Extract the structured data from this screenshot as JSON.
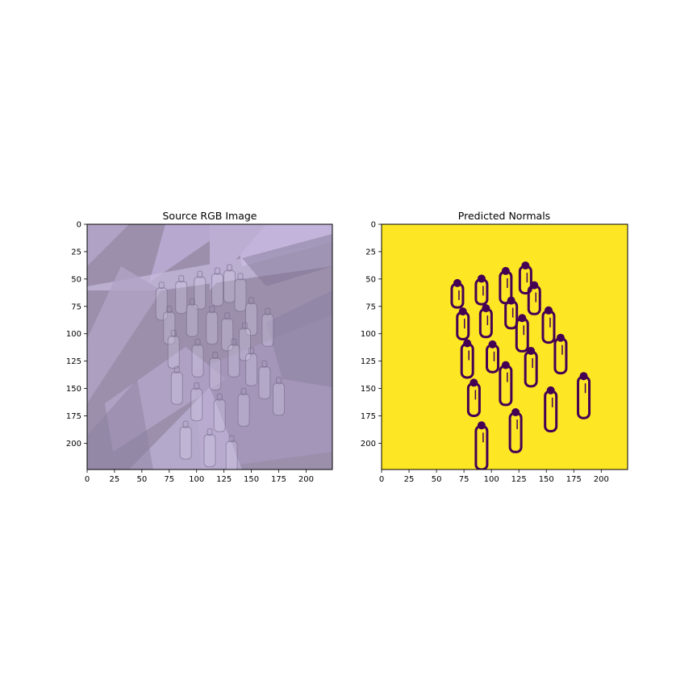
{
  "chart_data": [
    {
      "type": "heatmap",
      "title": "Source RGB Image",
      "xlabel": "",
      "ylabel": "",
      "xlim": [
        0,
        224
      ],
      "ylim": [
        224,
        0
      ],
      "xticks": [
        0,
        25,
        50,
        75,
        100,
        125,
        150,
        175,
        200
      ],
      "yticks": [
        0,
        25,
        50,
        75,
        100,
        125,
        150,
        175,
        200
      ],
      "image_description_colors": [
        "#9b8fac",
        "#b7a8cf",
        "#c9bce0",
        "#7e7393"
      ],
      "bottles": [
        [
          68,
          58
        ],
        [
          86,
          52
        ],
        [
          103,
          48
        ],
        [
          119,
          45
        ],
        [
          130,
          42
        ],
        [
          140,
          50
        ],
        [
          150,
          72
        ],
        [
          165,
          82
        ],
        [
          75,
          80
        ],
        [
          96,
          73
        ],
        [
          114,
          80
        ],
        [
          128,
          86
        ],
        [
          144,
          95
        ],
        [
          79,
          102
        ],
        [
          101,
          110
        ],
        [
          117,
          122
        ],
        [
          134,
          110
        ],
        [
          150,
          118
        ],
        [
          162,
          130
        ],
        [
          82,
          135
        ],
        [
          100,
          150
        ],
        [
          121,
          160
        ],
        [
          143,
          155
        ],
        [
          175,
          145
        ],
        [
          90,
          185
        ],
        [
          112,
          192
        ],
        [
          132,
          198
        ]
      ]
    },
    {
      "type": "heatmap",
      "title": "Predicted Normals",
      "xlabel": "",
      "ylabel": "",
      "xlim": [
        0,
        224
      ],
      "ylim": [
        224,
        0
      ],
      "xticks": [
        0,
        25,
        50,
        75,
        100,
        125,
        150,
        175,
        200
      ],
      "yticks": [
        0,
        25,
        50,
        75,
        100,
        125,
        150,
        175,
        200
      ],
      "background_color": "#fde725",
      "outline_color": "#440154",
      "outlines": [
        {
          "cx": 69,
          "y1": 50,
          "y2": 76
        },
        {
          "cx": 91,
          "y1": 46,
          "y2": 73
        },
        {
          "cx": 113,
          "y1": 39,
          "y2": 72
        },
        {
          "cx": 131,
          "y1": 34,
          "y2": 63
        },
        {
          "cx": 139,
          "y1": 52,
          "y2": 82
        },
        {
          "cx": 74,
          "y1": 76,
          "y2": 105
        },
        {
          "cx": 95,
          "y1": 73,
          "y2": 103
        },
        {
          "cx": 118,
          "y1": 66,
          "y2": 95
        },
        {
          "cx": 128,
          "y1": 82,
          "y2": 116
        },
        {
          "cx": 152,
          "y1": 75,
          "y2": 108
        },
        {
          "cx": 78,
          "y1": 105,
          "y2": 140
        },
        {
          "cx": 101,
          "y1": 106,
          "y2": 135
        },
        {
          "cx": 136,
          "y1": 112,
          "y2": 148
        },
        {
          "cx": 163,
          "y1": 100,
          "y2": 136
        },
        {
          "cx": 84,
          "y1": 141,
          "y2": 175
        },
        {
          "cx": 113,
          "y1": 125,
          "y2": 165
        },
        {
          "cx": 184,
          "y1": 135,
          "y2": 177
        },
        {
          "cx": 154,
          "y1": 148,
          "y2": 189
        },
        {
          "cx": 122,
          "y1": 168,
          "y2": 208
        },
        {
          "cx": 91,
          "y1": 180,
          "y2": 224
        }
      ]
    }
  ]
}
